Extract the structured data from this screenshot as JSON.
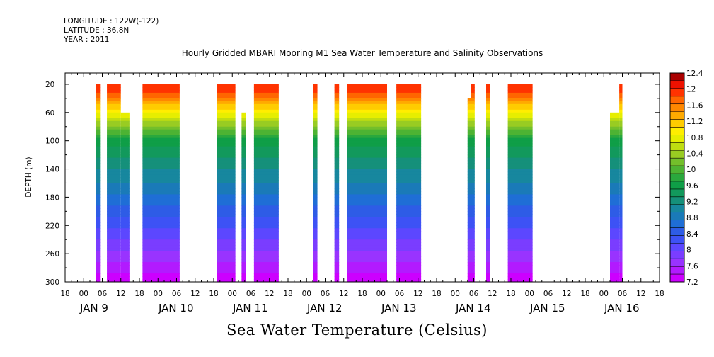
{
  "header": {
    "longitude": "LONGITUDE : 122W(-122)",
    "latitude": "LATITUDE : 36.8N",
    "year": "YEAR : 2011"
  },
  "caption": "Sea Water Temperature (Celsius)",
  "chart_data": {
    "type": "heatmap",
    "title": "Hourly Gridded MBARI Mooring M1 Sea Water Temperature and Salinity Observations",
    "xlabel": "",
    "ylabel": "DEPTH (m)",
    "x_axis": {
      "unit": "hours since 2011-01-08 18:00",
      "range": [
        0,
        192
      ],
      "hour_tick_labels": [
        "18",
        "00",
        "06",
        "12",
        "18",
        "00",
        "06",
        "12",
        "18",
        "00",
        "06",
        "12",
        "18",
        "00",
        "06",
        "12",
        "18",
        "00",
        "06",
        "12",
        "18",
        "00",
        "06",
        "12",
        "18",
        "00",
        "06",
        "12",
        "18",
        "00",
        "06",
        "12",
        "18"
      ],
      "day_labels": [
        "JAN  9",
        "JAN 10",
        "JAN 11",
        "JAN 12",
        "JAN 13",
        "JAN 14",
        "JAN 15",
        "JAN 16"
      ]
    },
    "y_axis": {
      "range": [
        300,
        4
      ],
      "inverted": true,
      "tick_labels": [
        "20",
        "60",
        "100",
        "140",
        "180",
        "220",
        "260",
        "300"
      ]
    },
    "colorbar": {
      "levels": [
        7.2,
        7.4,
        7.6,
        7.8,
        8,
        8.2,
        8.4,
        8.6,
        8.8,
        9,
        9.2,
        9.4,
        9.6,
        9.8,
        10,
        10.2,
        10.4,
        10.6,
        10.8,
        11,
        11.2,
        11.4,
        11.6,
        11.8,
        12,
        12.2,
        12.4
      ],
      "labels": [
        "12.4",
        "12",
        "11.6",
        "11.2",
        "10.8",
        "10.4",
        "10",
        "9.6",
        "9.2",
        "8.8",
        "8.4",
        "8",
        "7.6",
        "7.2"
      ],
      "colors": [
        "#cc00ff",
        "#b21aff",
        "#9933ff",
        "#7a3dff",
        "#5c47ff",
        "#3d52f5",
        "#2e5ce6",
        "#1f6ed6",
        "#1a7ab8",
        "#17879e",
        "#15907a",
        "#12995c",
        "#0f9e47",
        "#2aa83d",
        "#4db333",
        "#73bf2b",
        "#99cc22",
        "#bfdd11",
        "#e6ee00",
        "#ffee00",
        "#ffcc00",
        "#ffaa00",
        "#ff8800",
        "#ff6600",
        "#ff3300",
        "#ee1100",
        "#aa0000"
      ]
    },
    "segments": [
      {
        "x0": 10,
        "x1": 11.5,
        "top": 20
      },
      {
        "x0": 13.5,
        "x1": 18,
        "top": 20
      },
      {
        "x0": 18,
        "x1": 21,
        "top": 60
      },
      {
        "x0": 25,
        "x1": 37,
        "top": 20
      },
      {
        "x0": 49,
        "x1": 55,
        "top": 20
      },
      {
        "x0": 57,
        "x1": 58.5,
        "top": 60
      },
      {
        "x0": 61,
        "x1": 69,
        "top": 20
      },
      {
        "x0": 80,
        "x1": 81.5,
        "top": 20
      },
      {
        "x0": 87,
        "x1": 88.5,
        "top": 20
      },
      {
        "x0": 91,
        "x1": 104,
        "top": 20
      },
      {
        "x0": 107,
        "x1": 115,
        "top": 20
      },
      {
        "x0": 130,
        "x1": 131,
        "top": 40
      },
      {
        "x0": 131,
        "x1": 132.3,
        "top": 20
      },
      {
        "x0": 136,
        "x1": 137.3,
        "top": 20
      },
      {
        "x0": 143,
        "x1": 151,
        "top": 20
      },
      {
        "x0": 176,
        "x1": 179,
        "top": 60
      },
      {
        "x0": 179,
        "x1": 180,
        "top": 20
      }
    ]
  }
}
